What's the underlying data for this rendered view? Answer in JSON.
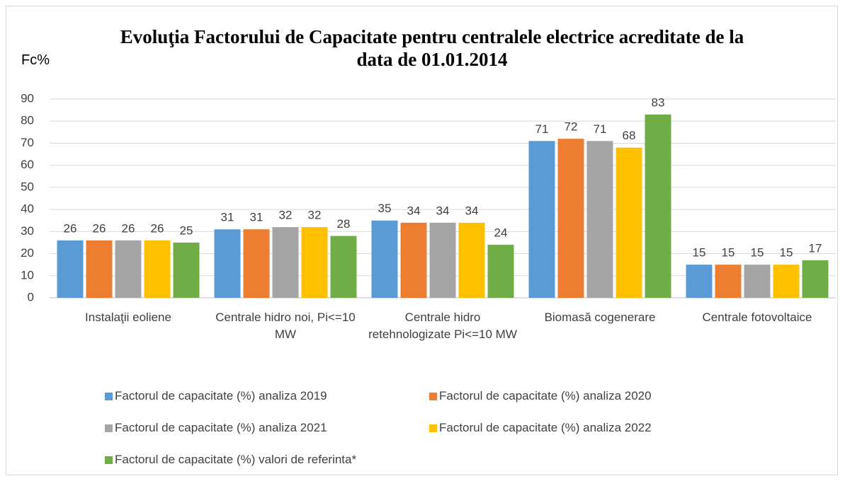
{
  "chart_data": {
    "type": "bar",
    "title": "Evoluţia Factorului de Capacitate pentru centralele electrice acreditate de la data de 01.01.2014",
    "y_label": "Fc%",
    "categories": [
      "Instalaţii eoliene",
      "Centrale hidro noi, Pi<=10 MW",
      "Centrale hidro retehnologizate Pi<=10 MW",
      "Biomasă cogenerare",
      "Centrale fotovoltaice"
    ],
    "series": [
      {
        "name": "Factorul de capacitate (%) analiza 2019",
        "color": "#5b9bd5",
        "values": [
          26,
          31,
          35,
          71,
          15
        ]
      },
      {
        "name": "Factorul de capacitate (%) analiza 2020",
        "color": "#ed7d31",
        "values": [
          26,
          31,
          34,
          72,
          15
        ]
      },
      {
        "name": "Factorul de capacitate (%) analiza 2021",
        "color": "#a5a5a5",
        "values": [
          26,
          32,
          34,
          71,
          15
        ]
      },
      {
        "name": "Factorul de capacitate (%) analiza 2022",
        "color": "#ffc000",
        "values": [
          26,
          32,
          34,
          68,
          15
        ]
      },
      {
        "name": "Factorul de capacitate (%) valori de referinta*",
        "color": "#70ad47",
        "values": [
          25,
          28,
          24,
          83,
          17
        ]
      }
    ],
    "ylim": [
      0,
      90
    ],
    "yticks": [
      0,
      10,
      20,
      30,
      40,
      50,
      60,
      70,
      80,
      90
    ],
    "grid": true,
    "legend": "bottom"
  }
}
